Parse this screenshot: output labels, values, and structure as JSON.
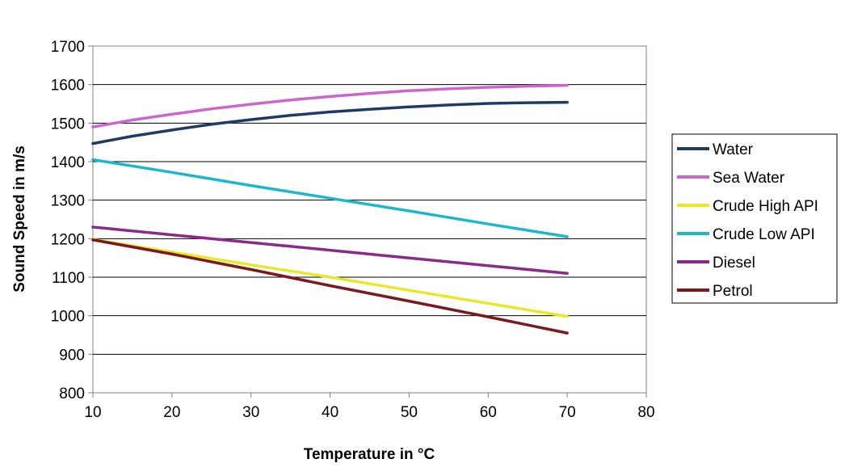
{
  "chart_data": {
    "type": "line",
    "title": "",
    "xlabel": "Temperature in °C",
    "ylabel": "Sound Speed in m/s",
    "xlim": [
      10,
      80
    ],
    "ylim": [
      800,
      1700
    ],
    "x_ticks": [
      10,
      20,
      30,
      40,
      50,
      60,
      70,
      80
    ],
    "y_ticks": [
      800,
      900,
      1000,
      1100,
      1200,
      1300,
      1400,
      1500,
      1600,
      1700
    ],
    "grid": "horizontal",
    "legend_position": "right",
    "series": [
      {
        "name": "Water",
        "color": "#1f3a68",
        "x": [
          10,
          15,
          20,
          25,
          30,
          35,
          40,
          45,
          50,
          55,
          60,
          65,
          70
        ],
        "values": [
          1447,
          1466,
          1482,
          1497,
          1509,
          1520,
          1529,
          1536,
          1542,
          1547,
          1551,
          1553,
          1554
        ]
      },
      {
        "name": "Sea Water",
        "color": "#cc66cc",
        "x": [
          10,
          15,
          20,
          25,
          30,
          35,
          40,
          45,
          50,
          55,
          60,
          65,
          70
        ],
        "values": [
          1490,
          1508,
          1523,
          1537,
          1549,
          1560,
          1569,
          1577,
          1584,
          1589,
          1593,
          1596,
          1598
        ]
      },
      {
        "name": "Crude High API",
        "color": "#e8e82a",
        "x": [
          10,
          20,
          30,
          40,
          50,
          60,
          70
        ],
        "values": [
          1198,
          1165,
          1132,
          1100,
          1066,
          1032,
          998
        ]
      },
      {
        "name": "Crude Low API",
        "color": "#1ab8cc",
        "x": [
          10,
          20,
          30,
          40,
          50,
          60,
          70
        ],
        "values": [
          1405,
          1372,
          1338,
          1305,
          1272,
          1238,
          1205
        ]
      },
      {
        "name": "Diesel",
        "color": "#8b2a8b",
        "x": [
          10,
          20,
          30,
          40,
          50,
          60,
          70
        ],
        "values": [
          1230,
          1210,
          1190,
          1170,
          1150,
          1130,
          1110
        ]
      },
      {
        "name": "Petrol",
        "color": "#7a1a1a",
        "x": [
          10,
          20,
          30,
          40,
          50,
          60,
          70
        ],
        "values": [
          1197,
          1160,
          1120,
          1078,
          1038,
          997,
          955
        ]
      }
    ]
  }
}
